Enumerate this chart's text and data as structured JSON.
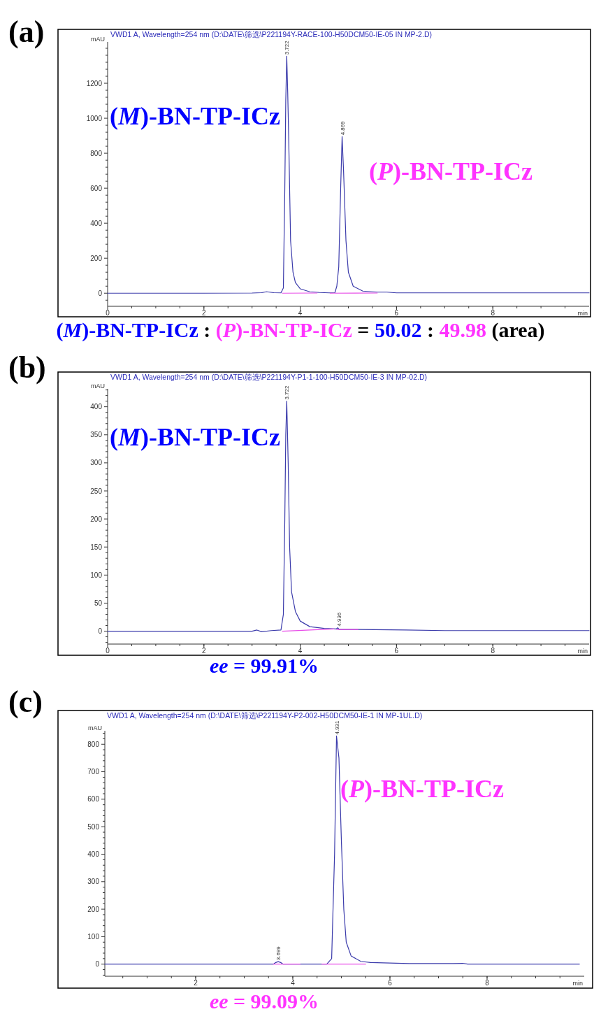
{
  "chart_data": [
    {
      "type": "line",
      "title": "(a)",
      "xlabel": "min",
      "ylabel": "mAU",
      "xlim": [
        0,
        10
      ],
      "ylim": [
        -75,
        1436
      ],
      "xticks": [
        0,
        2,
        4,
        6,
        8
      ],
      "yticks": [
        0,
        200,
        400,
        600,
        800,
        1000,
        1200
      ],
      "grid": false,
      "series": [
        {
          "color": "#3b3bab",
          "x": [
            0,
            1,
            2,
            3.0,
            3.2,
            3.3,
            3.45,
            3.6,
            3.65,
            3.68,
            3.7,
            3.72,
            3.74,
            3.76,
            3.8,
            3.85,
            3.9,
            4.0,
            4.2,
            4.4,
            4.6,
            4.72,
            4.76,
            4.8,
            4.84,
            4.87,
            4.9,
            4.95,
            5.0,
            5.1,
            5.3,
            5.6,
            5.8,
            6.0,
            7,
            8,
            9,
            10
          ],
          "values": [
            0,
            0,
            0,
            1,
            3,
            8,
            3,
            2,
            30,
            600,
            1100,
            1355,
            1150,
            900,
            300,
            120,
            60,
            25,
            8,
            4,
            2,
            3,
            40,
            150,
            600,
            895,
            700,
            300,
            120,
            40,
            12,
            6,
            6,
            2,
            2,
            2,
            2,
            2
          ]
        },
        {
          "color": "#e84de8",
          "x": [
            3.63,
            4.35
          ],
          "values": [
            0,
            1
          ]
        },
        {
          "color": "#e84de8",
          "x": [
            4.62,
            5.6
          ],
          "values": [
            0,
            1
          ]
        }
      ],
      "annotations": [
        "VWD1 A, Wavelength=254 nm (D:\\DATE\\筛选\\P221194Y-RACE-100-H50DCM50-IE-05 IN MP-2.D)",
        {
          "text": "3.722",
          "x": 3.72,
          "y": 1355
        },
        {
          "text": "4.869",
          "x": 4.87,
          "y": 895
        },
        "(M)-BN-TP-ICz",
        "(P)-BN-TP-ICz",
        "(M)-BN-TP-ICz : (P)-BN-TP-ICz = 50.02 : 49.98 (area)"
      ]
    },
    {
      "type": "line",
      "title": "(b)",
      "xlabel": "min",
      "ylabel": "mAU",
      "xlim": [
        0,
        10
      ],
      "ylim": [
        -23,
        432
      ],
      "xticks": [
        0,
        2,
        4,
        6,
        8
      ],
      "yticks": [
        0,
        50,
        100,
        150,
        200,
        250,
        300,
        350,
        400
      ],
      "grid": false,
      "series": [
        {
          "color": "#3b3bab",
          "x": [
            0,
            1,
            2,
            3.0,
            3.1,
            3.2,
            3.4,
            3.6,
            3.65,
            3.68,
            3.7,
            3.72,
            3.75,
            3.78,
            3.82,
            3.9,
            4.0,
            4.2,
            4.5,
            4.75,
            4.78,
            4.81,
            4.85,
            5.2,
            6.2,
            7,
            8,
            9,
            10
          ],
          "values": [
            0,
            0,
            0,
            0,
            2,
            -1,
            1,
            2,
            30,
            200,
            350,
            410,
            300,
            150,
            70,
            35,
            18,
            8,
            5,
            4,
            6,
            3,
            3,
            3,
            2,
            1,
            1,
            1,
            1
          ]
        },
        {
          "color": "#e84de8",
          "x": [
            3.63,
            4.7
          ],
          "values": [
            0,
            4
          ]
        },
        {
          "color": "#e84de8",
          "x": [
            4.76,
            5.2
          ],
          "values": [
            3,
            3
          ]
        }
      ],
      "annotations": [
        "VWD1 A, Wavelength=254 nm (D:\\DATE\\筛选\\P221194Y-P1-1-100-H50DCM50-IE-3 IN MP-02.D)",
        {
          "text": "3.722",
          "x": 3.72,
          "y": 410
        },
        {
          "text": "4.936",
          "x": 4.8,
          "y": 6
        },
        "(M)-BN-TP-ICz",
        "ee = 99.91%"
      ]
    },
    {
      "type": "line",
      "title": "(c)",
      "xlabel": "min",
      "ylabel": "mAU",
      "xlim": [
        0.13,
        10
      ],
      "ylim": [
        -44,
        849
      ],
      "xticks": [
        2,
        4,
        6,
        8
      ],
      "yticks": [
        0,
        100,
        200,
        300,
        400,
        500,
        600,
        700,
        800
      ],
      "grid": false,
      "series": [
        {
          "color": "#3b3bab",
          "x": [
            0.13,
            1,
            2,
            3,
            3.6,
            3.65,
            3.7,
            3.75,
            3.8,
            4.7,
            4.8,
            4.86,
            4.9,
            4.95,
            5.0,
            5.05,
            5.1,
            5.2,
            5.4,
            5.6,
            6.0,
            6.4,
            7.3,
            7.5,
            7.6,
            8.5,
            9.9
          ],
          "values": [
            0,
            0,
            0,
            0,
            0,
            6,
            9,
            6,
            0,
            0,
            20,
            400,
            830,
            750,
            450,
            200,
            80,
            30,
            10,
            6,
            4,
            2,
            2,
            3,
            0,
            0,
            0
          ]
        },
        {
          "color": "#e84de8",
          "x": [
            3.6,
            4.15
          ],
          "values": [
            0,
            0
          ]
        },
        {
          "color": "#e84de8",
          "x": [
            4.6,
            5.5
          ],
          "values": [
            0,
            0
          ]
        }
      ],
      "annotations": [
        "VWD1 A, Wavelength=254 nm (D:\\DATE\\筛选\\P221194Y-P2-002-H50DCM50-IE-1 IN MP-1UL.D)",
        {
          "text": "3.699",
          "x": 3.7,
          "y": 9
        },
        {
          "text": "4.931",
          "x": 4.9,
          "y": 830
        },
        "(P)-BN-TP-ICz",
        "ee = 99.09%"
      ]
    }
  ]
}
